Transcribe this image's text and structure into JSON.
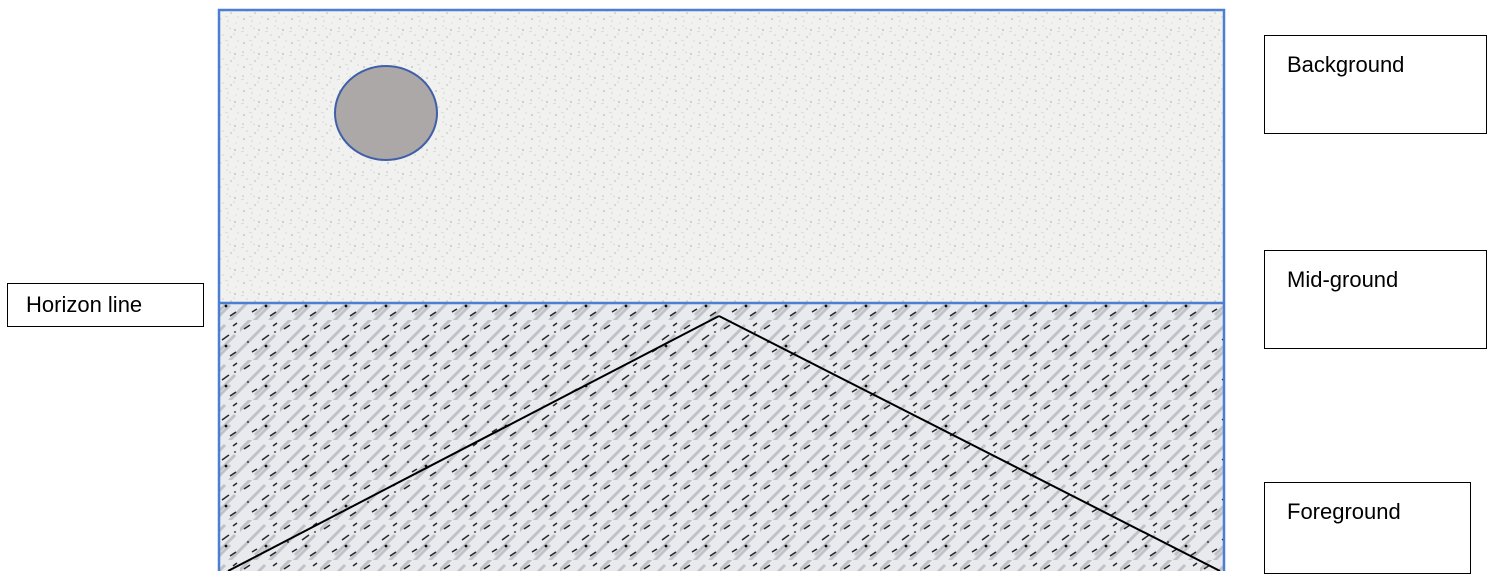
{
  "labels": {
    "background": "Background",
    "midground": "Mid-ground",
    "foreground": "Foreground",
    "horizon": "Horizon line"
  },
  "colors": {
    "frame_border": "#4a7fd4",
    "sky_fill": "#f1f1ef",
    "sky_speckle": "#c9c9c7",
    "ground_fill": "#e8eaed",
    "ground_streak": "#2a2a2a",
    "sun_fill": "#aca8a8",
    "sun_stroke": "#3f5fa8",
    "perspective_lines": "#000000"
  },
  "icons": {
    "sun": "circle-shape"
  }
}
